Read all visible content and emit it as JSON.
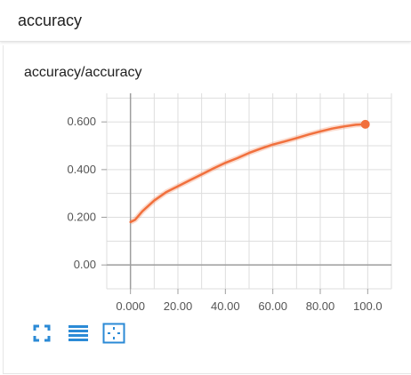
{
  "header": {
    "title": "accuracy"
  },
  "card": {
    "title": "accuracy/accuracy"
  },
  "toolbar": {
    "buttons": [
      {
        "name": "expand-icon"
      },
      {
        "name": "toggle-y-axis-log-icon"
      },
      {
        "name": "fit-domain-icon"
      }
    ]
  },
  "colors": {
    "series": "#f1703d",
    "icon": "#2b8ad6",
    "grid": "#dddddd",
    "axis": "#9e9e9e"
  },
  "chart_data": {
    "type": "line",
    "title": "accuracy/accuracy",
    "xlabel": "",
    "ylabel": "",
    "xlim": [
      -10,
      110
    ],
    "ylim": [
      -0.1,
      0.72
    ],
    "xticks": [
      0,
      20,
      40,
      60,
      80,
      100
    ],
    "xtick_labels": [
      "0.000",
      "20.00",
      "40.00",
      "60.00",
      "80.00",
      "100.0"
    ],
    "yticks": [
      0,
      0.2,
      0.4,
      0.6
    ],
    "ytick_labels": [
      "0.00",
      "0.200",
      "0.400",
      "0.600"
    ],
    "grid": true,
    "series": [
      {
        "x": [
          0,
          2,
          5,
          10,
          15,
          20,
          25,
          30,
          35,
          40,
          45,
          50,
          55,
          60,
          65,
          70,
          75,
          80,
          85,
          90,
          95,
          99
        ],
        "values": [
          0.18,
          0.19,
          0.225,
          0.27,
          0.305,
          0.33,
          0.355,
          0.38,
          0.405,
          0.428,
          0.448,
          0.47,
          0.488,
          0.505,
          0.518,
          0.532,
          0.547,
          0.56,
          0.572,
          0.581,
          0.588,
          0.59
        ]
      }
    ]
  }
}
